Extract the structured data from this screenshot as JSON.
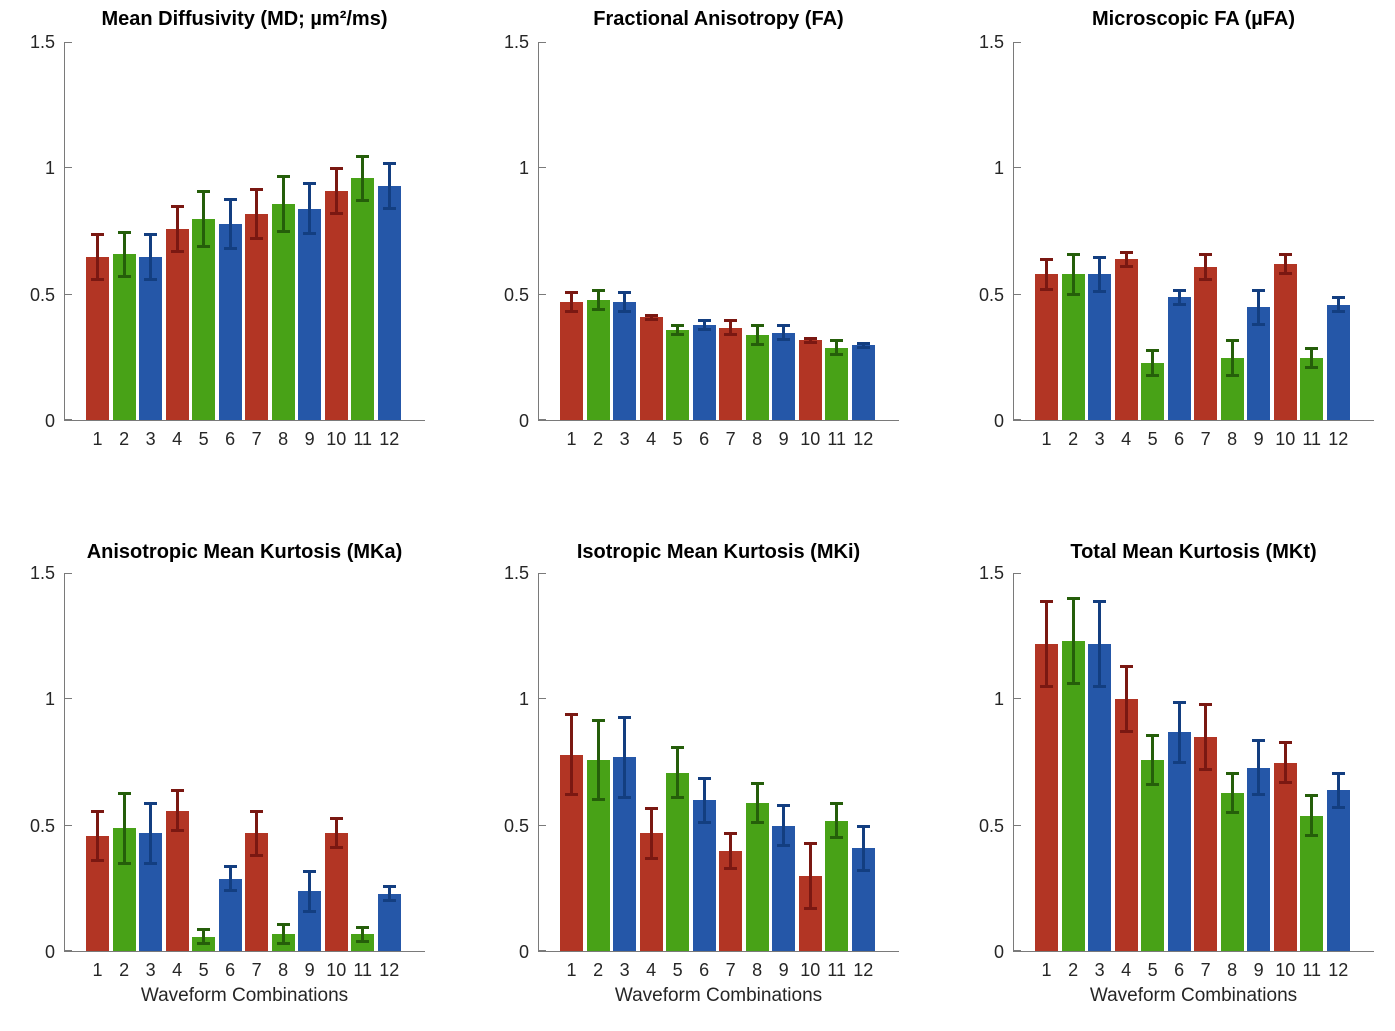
{
  "figure": {
    "background": "#ffffff",
    "axis_color": "#7a7a7a",
    "tick_text_color": "#262626",
    "title_color": "#000000",
    "layout": {
      "rows": 2,
      "cols": 3,
      "grid": "off",
      "legend": "none"
    },
    "palette": {
      "bar": [
        "#b23524",
        "#48a217",
        "#2557a8"
      ],
      "error": [
        "#7a1812",
        "#255e0a",
        "#133e80"
      ],
      "cycle_note": "bars repeat red, green, blue"
    }
  },
  "chart_data": [
    {
      "type": "bar",
      "title": "Mean Diffusivity (MD; µm²/ms)",
      "categories": [
        "1",
        "2",
        "3",
        "4",
        "5",
        "6",
        "7",
        "8",
        "9",
        "10",
        "11",
        "12"
      ],
      "values": [
        0.65,
        0.66,
        0.65,
        0.76,
        0.8,
        0.78,
        0.82,
        0.86,
        0.84,
        0.91,
        0.96,
        0.93
      ],
      "errors": [
        0.09,
        0.09,
        0.09,
        0.09,
        0.11,
        0.1,
        0.1,
        0.11,
        0.1,
        0.09,
        0.09,
        0.09
      ],
      "ylim": [
        0,
        1.5
      ],
      "yticks": [
        0,
        0.5,
        1,
        1.5
      ]
    },
    {
      "type": "bar",
      "title": "Fractional Anisotropy (FA)",
      "categories": [
        "1",
        "2",
        "3",
        "4",
        "5",
        "6",
        "7",
        "8",
        "9",
        "10",
        "11",
        "12"
      ],
      "values": [
        0.47,
        0.48,
        0.47,
        0.41,
        0.36,
        0.38,
        0.37,
        0.34,
        0.35,
        0.32,
        0.29,
        0.3
      ],
      "errors": [
        0.04,
        0.04,
        0.04,
        0.01,
        0.02,
        0.02,
        0.03,
        0.04,
        0.03,
        0.01,
        0.03,
        0.01
      ],
      "ylim": [
        0,
        1.5
      ],
      "yticks": [
        0,
        0.5,
        1,
        1.5
      ]
    },
    {
      "type": "bar",
      "title": "Microscopic FA (µFA)",
      "categories": [
        "1",
        "2",
        "3",
        "4",
        "5",
        "6",
        "7",
        "8",
        "9",
        "10",
        "11",
        "12"
      ],
      "values": [
        0.58,
        0.58,
        0.58,
        0.64,
        0.23,
        0.49,
        0.61,
        0.25,
        0.45,
        0.62,
        0.25,
        0.46
      ],
      "errors": [
        0.06,
        0.08,
        0.07,
        0.03,
        0.05,
        0.03,
        0.05,
        0.07,
        0.07,
        0.04,
        0.04,
        0.03
      ],
      "ylim": [
        0,
        1.5
      ],
      "yticks": [
        0,
        0.5,
        1,
        1.5
      ]
    },
    {
      "type": "bar",
      "title": "Anisotropic Mean Kurtosis (MKa)",
      "categories": [
        "1",
        "2",
        "3",
        "4",
        "5",
        "6",
        "7",
        "8",
        "9",
        "10",
        "11",
        "12"
      ],
      "values": [
        0.46,
        0.49,
        0.47,
        0.56,
        0.06,
        0.29,
        0.47,
        0.07,
        0.24,
        0.47,
        0.07,
        0.23
      ],
      "errors": [
        0.1,
        0.14,
        0.12,
        0.08,
        0.03,
        0.05,
        0.09,
        0.04,
        0.08,
        0.06,
        0.03,
        0.03
      ],
      "ylim": [
        0,
        1.5
      ],
      "yticks": [
        0,
        0.5,
        1,
        1.5
      ],
      "xlabel": "Waveform Combinations"
    },
    {
      "type": "bar",
      "title": "Isotropic Mean Kurtosis (MKi)",
      "categories": [
        "1",
        "2",
        "3",
        "4",
        "5",
        "6",
        "7",
        "8",
        "9",
        "10",
        "11",
        "12"
      ],
      "values": [
        0.78,
        0.76,
        0.77,
        0.47,
        0.71,
        0.6,
        0.4,
        0.59,
        0.5,
        0.3,
        0.52,
        0.41
      ],
      "errors": [
        0.16,
        0.16,
        0.16,
        0.1,
        0.1,
        0.09,
        0.07,
        0.08,
        0.08,
        0.13,
        0.07,
        0.09
      ],
      "ylim": [
        0,
        1.5
      ],
      "yticks": [
        0,
        0.5,
        1,
        1.5
      ],
      "xlabel": "Waveform Combinations"
    },
    {
      "type": "bar",
      "title": "Total Mean Kurtosis (MKt)",
      "categories": [
        "1",
        "2",
        "3",
        "4",
        "5",
        "6",
        "7",
        "8",
        "9",
        "10",
        "11",
        "12"
      ],
      "values": [
        1.22,
        1.23,
        1.22,
        1.0,
        0.76,
        0.87,
        0.85,
        0.63,
        0.73,
        0.75,
        0.54,
        0.64
      ],
      "errors": [
        0.17,
        0.17,
        0.17,
        0.13,
        0.1,
        0.12,
        0.13,
        0.08,
        0.11,
        0.08,
        0.08,
        0.07
      ],
      "ylim": [
        0,
        1.5
      ],
      "yticks": [
        0,
        0.5,
        1,
        1.5
      ],
      "xlabel": "Waveform Combinations"
    }
  ]
}
